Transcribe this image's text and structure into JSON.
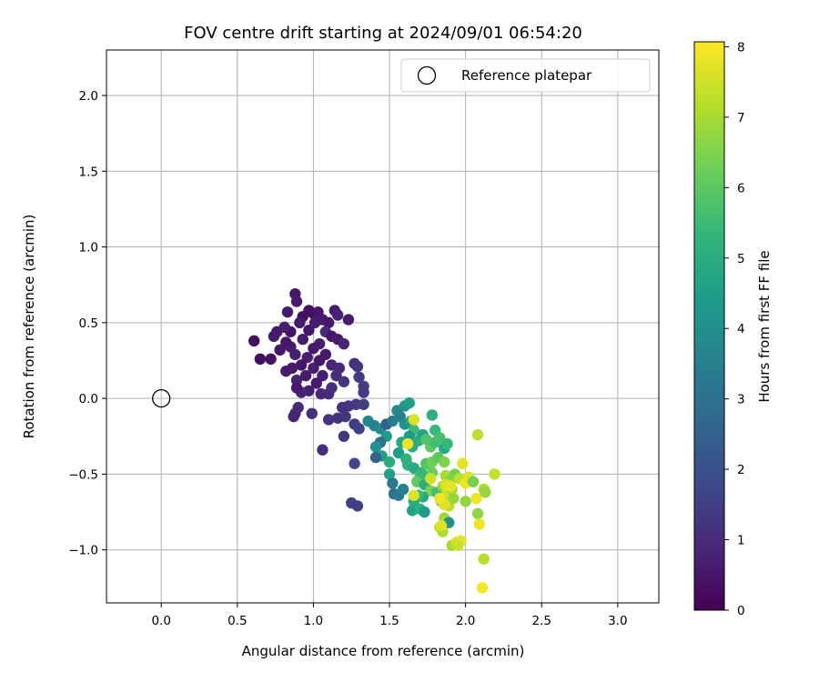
{
  "chart_data": {
    "type": "scatter",
    "title": "FOV centre drift starting at 2024/09/01 06:54:20",
    "xlabel": "Angular distance from reference (arcmin)",
    "ylabel": "Rotation from reference (arcmin)",
    "xlim": [
      -0.36,
      3.27
    ],
    "ylim": [
      -1.35,
      2.3
    ],
    "xticks": [
      0.0,
      0.5,
      1.0,
      1.5,
      2.0,
      2.5,
      3.0
    ],
    "xtick_labels": [
      "0.0",
      "0.5",
      "1.0",
      "1.5",
      "2.0",
      "2.5",
      "3.0"
    ],
    "yticks": [
      -1.0,
      -0.5,
      0.0,
      0.5,
      1.0,
      1.5,
      2.0
    ],
    "ytick_labels": [
      "−1.0",
      "−0.5",
      "0.0",
      "0.5",
      "1.0",
      "1.5",
      "2.0"
    ],
    "grid": true,
    "legend_position": "top-right",
    "colormap": "viridis",
    "colorbar": {
      "label": "Hours from first FF file",
      "min": 0,
      "max": 8.07,
      "ticks": [
        0,
        1,
        2,
        3,
        4,
        5,
        6,
        7,
        8
      ],
      "tick_labels": [
        "0",
        "1",
        "2",
        "3",
        "4",
        "5",
        "6",
        "7",
        "8"
      ]
    },
    "reference": {
      "name": "Reference platepar",
      "x": 0.0,
      "y": 0.0
    },
    "series": [
      {
        "name": "",
        "points": [
          [
            0.88,
            0.69,
            0.5
          ],
          [
            0.89,
            0.64,
            0.6
          ],
          [
            0.97,
            0.58,
            0.4
          ],
          [
            1.0,
            0.56,
            0.3
          ],
          [
            1.03,
            0.57,
            0.5
          ],
          [
            0.93,
            0.54,
            0.3
          ],
          [
            0.91,
            0.5,
            0.6
          ],
          [
            0.85,
            0.44,
            0.4
          ],
          [
            0.83,
            0.57,
            0.6
          ],
          [
            0.76,
            0.44,
            0.5
          ],
          [
            0.74,
            0.41,
            0.6
          ],
          [
            0.81,
            0.47,
            0.7
          ],
          [
            0.61,
            0.38,
            0.3
          ],
          [
            0.78,
            0.32,
            0.5
          ],
          [
            0.72,
            0.26,
            0.4
          ],
          [
            0.65,
            0.26,
            0.3
          ],
          [
            0.85,
            0.34,
            0.6
          ],
          [
            0.82,
            0.37,
            0.5
          ],
          [
            0.88,
            0.29,
            0.7
          ],
          [
            0.93,
            0.39,
            0.6
          ],
          [
            0.97,
            0.45,
            0.5
          ],
          [
            1.01,
            0.5,
            0.7
          ],
          [
            1.06,
            0.52,
            0.6
          ],
          [
            1.1,
            0.5,
            0.5
          ],
          [
            1.14,
            0.58,
            0.6
          ],
          [
            1.16,
            0.55,
            0.8
          ],
          [
            1.23,
            0.52,
            0.6
          ],
          [
            1.08,
            0.44,
            0.9
          ],
          [
            1.12,
            0.41,
            0.5
          ],
          [
            1.16,
            0.39,
            0.6
          ],
          [
            1.2,
            0.36,
            0.8
          ],
          [
            1.04,
            0.36,
            0.7
          ],
          [
            1.0,
            0.33,
            0.6
          ],
          [
            0.96,
            0.27,
            0.7
          ],
          [
            0.92,
            0.22,
            0.5
          ],
          [
            0.86,
            0.2,
            0.6
          ],
          [
            0.82,
            0.18,
            0.6
          ],
          [
            0.89,
            0.12,
            0.8
          ],
          [
            0.95,
            0.15,
            0.6
          ],
          [
            1.0,
            0.2,
            0.7
          ],
          [
            1.04,
            0.25,
            0.5
          ],
          [
            1.08,
            0.29,
            0.6
          ],
          [
            1.12,
            0.22,
            0.8
          ],
          [
            1.17,
            0.2,
            0.9
          ],
          [
            1.06,
            0.15,
            0.7
          ],
          [
            1.02,
            0.1,
            0.6
          ],
          [
            0.97,
            0.05,
            0.7
          ],
          [
            0.92,
            0.04,
            0.8
          ],
          [
            0.89,
            0.07,
            0.6
          ],
          [
            0.9,
            -0.06,
            1.0
          ],
          [
            0.88,
            -0.1,
            0.9
          ],
          [
            0.87,
            -0.12,
            0.8
          ],
          [
            0.99,
            -0.1,
            1.1
          ],
          [
            1.05,
            0.03,
            0.9
          ],
          [
            1.1,
            0.03,
            1.0
          ],
          [
            1.12,
            0.07,
            1.1
          ],
          [
            1.15,
            0.15,
            1.0
          ],
          [
            1.2,
            0.11,
            1.2
          ],
          [
            1.27,
            0.23,
            1.1
          ],
          [
            1.29,
            0.21,
            1.3
          ],
          [
            1.3,
            0.14,
            1.4
          ],
          [
            1.33,
            0.08,
            1.5
          ],
          [
            1.33,
            0.04,
            1.4
          ],
          [
            1.33,
            -0.04,
            1.5
          ],
          [
            1.28,
            -0.04,
            1.4
          ],
          [
            1.23,
            -0.05,
            1.3
          ],
          [
            1.19,
            -0.06,
            1.2
          ],
          [
            1.21,
            -0.12,
            1.3
          ],
          [
            1.16,
            -0.13,
            1.2
          ],
          [
            1.1,
            -0.14,
            1.2
          ],
          [
            1.27,
            -0.17,
            1.5
          ],
          [
            1.3,
            -0.2,
            1.6
          ],
          [
            1.2,
            -0.25,
            1.3
          ],
          [
            1.06,
            -0.34,
            1.0
          ],
          [
            1.27,
            -0.43,
            1.7
          ],
          [
            1.25,
            -0.69,
            1.6
          ],
          [
            1.29,
            -0.71,
            1.5
          ],
          [
            1.36,
            -0.15,
            3.8
          ],
          [
            1.4,
            -0.18,
            3.6
          ],
          [
            1.44,
            -0.2,
            3.9
          ],
          [
            1.48,
            -0.17,
            2.4
          ],
          [
            1.52,
            -0.15,
            3.4
          ],
          [
            1.48,
            -0.25,
            4.4
          ],
          [
            1.44,
            -0.29,
            3.0
          ],
          [
            1.41,
            -0.32,
            4.1
          ],
          [
            1.45,
            -0.38,
            4.5
          ],
          [
            1.41,
            -0.39,
            2.5
          ],
          [
            1.5,
            -0.42,
            5.0
          ],
          [
            1.5,
            -0.5,
            4.6
          ],
          [
            1.52,
            -0.56,
            3.2
          ],
          [
            1.53,
            -0.63,
            3.0
          ],
          [
            1.56,
            -0.64,
            3.3
          ],
          [
            1.59,
            -0.6,
            3.5
          ],
          [
            1.55,
            -0.08,
            3.8
          ],
          [
            1.57,
            -0.12,
            3.5
          ],
          [
            1.6,
            -0.05,
            4.2
          ],
          [
            1.63,
            -0.03,
            4.5
          ],
          [
            1.6,
            -0.17,
            4.0
          ],
          [
            1.64,
            -0.15,
            4.6
          ],
          [
            1.66,
            -0.21,
            5.5
          ],
          [
            1.63,
            -0.25,
            4.3
          ],
          [
            1.58,
            -0.29,
            4.8
          ],
          [
            1.56,
            -0.36,
            4.5
          ],
          [
            1.61,
            -0.4,
            5.2
          ],
          [
            1.65,
            -0.32,
            4.9
          ],
          [
            1.69,
            -0.28,
            5.0
          ],
          [
            1.72,
            -0.24,
            4.7
          ],
          [
            1.74,
            -0.27,
            5.8
          ],
          [
            1.77,
            -0.32,
            6.0
          ],
          [
            1.8,
            -0.29,
            5.6
          ],
          [
            1.78,
            -0.11,
            5.1
          ],
          [
            1.8,
            -0.21,
            5.4
          ],
          [
            1.83,
            -0.26,
            5.7
          ],
          [
            1.86,
            -0.33,
            4.8
          ],
          [
            1.88,
            -0.3,
            5.4
          ],
          [
            1.66,
            -0.14,
            7.6
          ],
          [
            1.62,
            -0.44,
            5.2
          ],
          [
            1.66,
            -0.46,
            4.9
          ],
          [
            1.7,
            -0.52,
            5.8
          ],
          [
            1.68,
            -0.55,
            6.1
          ],
          [
            1.71,
            -0.49,
            5.4
          ],
          [
            1.74,
            -0.43,
            5.9
          ],
          [
            1.78,
            -0.42,
            6.3
          ],
          [
            1.82,
            -0.39,
            6.0
          ],
          [
            1.86,
            -0.42,
            6.5
          ],
          [
            1.78,
            -0.49,
            6.2
          ],
          [
            1.73,
            -0.57,
            5.0
          ],
          [
            1.77,
            -0.61,
            6.5
          ],
          [
            1.72,
            -0.65,
            4.8
          ],
          [
            1.69,
            -0.64,
            5.4
          ],
          [
            1.66,
            -0.68,
            5.0
          ],
          [
            1.65,
            -0.74,
            4.6
          ],
          [
            1.7,
            -0.73,
            5.1
          ],
          [
            1.73,
            -0.75,
            4.4
          ],
          [
            1.81,
            -0.62,
            5.6
          ],
          [
            1.85,
            -0.58,
            6.9
          ],
          [
            1.87,
            -0.51,
            7.0
          ],
          [
            1.9,
            -0.54,
            6.6
          ],
          [
            1.93,
            -0.5,
            6.4
          ],
          [
            1.96,
            -0.53,
            7.3
          ],
          [
            1.88,
            -0.63,
            7.5
          ],
          [
            1.91,
            -0.6,
            7.0
          ],
          [
            1.84,
            -0.68,
            6.2
          ],
          [
            1.89,
            -0.71,
            7.2
          ],
          [
            1.92,
            -0.66,
            6.8
          ],
          [
            1.86,
            -0.79,
            6.9
          ],
          [
            1.89,
            -0.82,
            4.0
          ],
          [
            1.83,
            -0.85,
            7.4
          ],
          [
            1.85,
            -0.88,
            7.1
          ],
          [
            1.91,
            -0.97,
            7.0
          ],
          [
            1.94,
            -0.95,
            7.6
          ],
          [
            1.97,
            -0.94,
            7.8
          ],
          [
            2.0,
            -0.68,
            6.7
          ],
          [
            2.0,
            -0.56,
            7.9
          ],
          [
            2.02,
            -0.52,
            7.7
          ],
          [
            2.05,
            -0.55,
            6.4
          ],
          [
            1.98,
            -0.43,
            7.8
          ],
          [
            2.07,
            -0.66,
            7.9
          ],
          [
            2.08,
            -0.76,
            6.7
          ],
          [
            2.09,
            -0.83,
            7.9
          ],
          [
            2.08,
            -0.24,
            7.3
          ],
          [
            2.12,
            -0.6,
            7.1
          ],
          [
            2.13,
            -0.62,
            6.8
          ],
          [
            2.19,
            -0.5,
            7.4
          ],
          [
            2.12,
            -1.06,
            7.2
          ],
          [
            2.11,
            -1.25,
            8.0
          ],
          [
            1.66,
            -0.64,
            7.6
          ],
          [
            1.84,
            -0.84,
            7.7
          ],
          [
            1.95,
            -0.97,
            7.4
          ],
          [
            1.62,
            -0.3,
            7.9
          ],
          [
            1.77,
            -0.53,
            7.5
          ],
          [
            1.86,
            -0.7,
            7.7
          ],
          [
            1.83,
            -0.66,
            7.9
          ],
          [
            1.87,
            -0.57,
            7.6
          ],
          [
            1.9,
            -0.58,
            7.8
          ]
        ]
      }
    ]
  }
}
